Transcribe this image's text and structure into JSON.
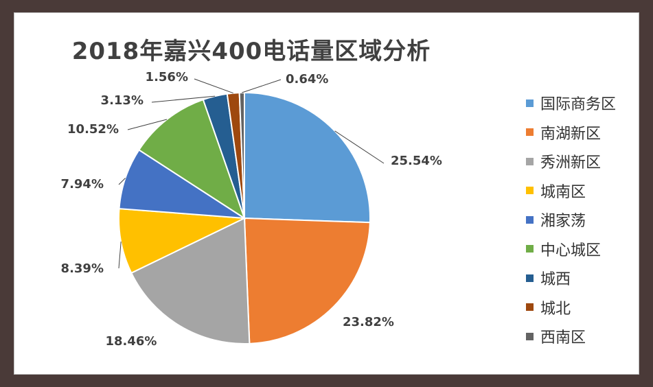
{
  "chart_data": {
    "type": "pie",
    "title": "2018年嘉兴400电话量区域分析",
    "legend_position": "right",
    "slices": [
      {
        "label": "国际商务区",
        "value": 25.54,
        "value_label": "25.54%",
        "color": "#5b9bd5"
      },
      {
        "label": "南湖新区",
        "value": 23.82,
        "value_label": "23.82%",
        "color": "#ed7d31"
      },
      {
        "label": "秀洲新区",
        "value": 18.46,
        "value_label": "18.46%",
        "color": "#a5a5a5"
      },
      {
        "label": "城南区",
        "value": 8.39,
        "value_label": "8.39%",
        "color": "#ffc000"
      },
      {
        "label": "湘家荡",
        "value": 7.94,
        "value_label": "7.94%",
        "color": "#4472c4"
      },
      {
        "label": "中心城区",
        "value": 10.52,
        "value_label": "10.52%",
        "color": "#70ad47"
      },
      {
        "label": "城西",
        "value": 3.13,
        "value_label": "3.13%",
        "color": "#255e91"
      },
      {
        "label": "城北",
        "value": 1.56,
        "value_label": "1.56%",
        "color": "#9e480e"
      },
      {
        "label": "西南区",
        "value": 0.64,
        "value_label": "0.64%",
        "color": "#636363"
      }
    ]
  }
}
